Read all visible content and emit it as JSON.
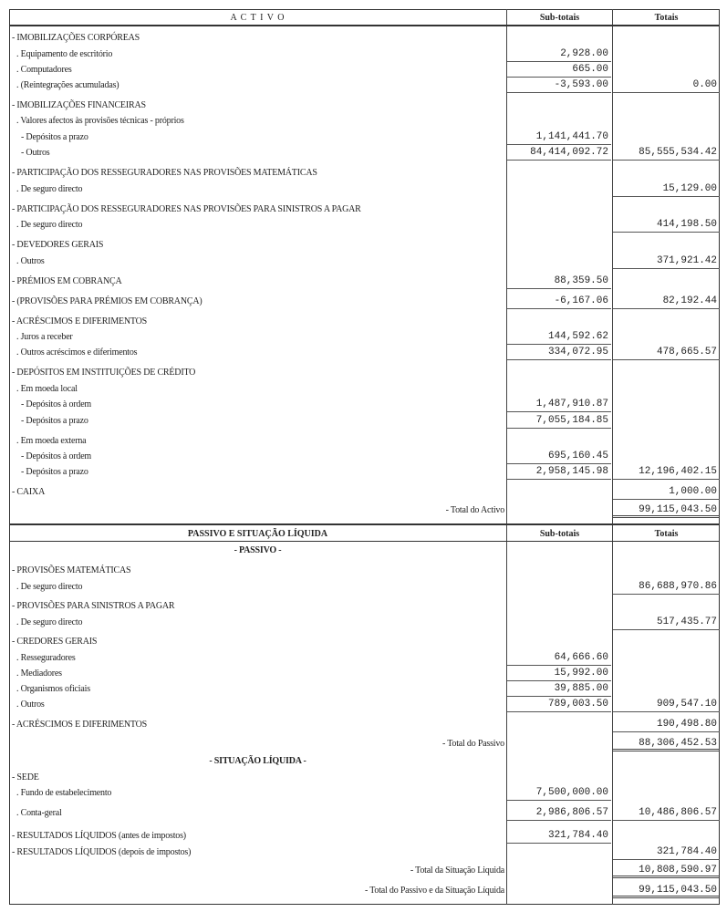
{
  "activo": {
    "header": {
      "title": "A C T I V O",
      "sub": "Sub-totais",
      "tot": "Totais"
    },
    "rows": [
      {
        "label": "- IMOBILIZAÇÕES CORPÓREAS"
      },
      {
        "label": ". Equipamento de escritório",
        "sub": "2,928.00",
        "i": 1
      },
      {
        "label": ". Computadores",
        "sub": "665.00",
        "i": 1
      },
      {
        "label": ".  (Reintegrações acumuladas)",
        "sub": "-3,593.00",
        "total": "0.00",
        "i": 1
      },
      {
        "label": "- IMOBILIZAÇÕES FINANCEIRAS"
      },
      {
        "label": ". Valores afectos às provisões técnicas - próprios",
        "i": 1
      },
      {
        "label": "- Depósitos a prazo",
        "sub": "1,141,441.70",
        "i": 2
      },
      {
        "label": "- Outros",
        "sub": "84,414,092.72",
        "total": "85,555,534.42",
        "i": 2
      },
      {
        "label": "- PARTICIPAÇÃO DOS RESSEGURADORES NAS PROVISÕES MATEMÁTICAS"
      },
      {
        "label": ". De seguro directo",
        "total": "15,129.00",
        "i": 1
      },
      {
        "label": "- PARTICIPAÇÃO DOS RESSEGURADORES NAS PROVISÕES PARA SINISTROS A PAGAR"
      },
      {
        "label": ". De seguro directo",
        "total": "414,198.50",
        "i": 1
      },
      {
        "label": "- DEVEDORES GERAIS"
      },
      {
        "label": ". Outros",
        "total": "371,921.42",
        "i": 1
      },
      {
        "label": "- PRÉMIOS EM COBRANÇA",
        "sub": "88,359.50"
      },
      {
        "label": "- (PROVISÕES PARA PRÉMIOS EM COBRANÇA)",
        "sub": "-6,167.06",
        "total": "82,192.44"
      },
      {
        "label": "- ACRÉSCIMOS  E  DIFERIMENTOS"
      },
      {
        "label": ". Juros a receber",
        "sub": "144,592.62",
        "i": 1
      },
      {
        "label": ". Outros acréscimos e diferimentos",
        "sub": "334,072.95",
        "total": "478,665.57",
        "i": 1
      },
      {
        "label": "- DEPÓSITOS EM INSTITUIÇÕES DE CRÉDITO"
      },
      {
        "label": ". Em moeda local",
        "i": 1
      },
      {
        "label": "- Depósitos à ordem",
        "sub": "1,487,910.87",
        "i": 2
      },
      {
        "label": "- Depósitos a prazo",
        "sub": "7,055,184.85",
        "i": 2
      },
      {
        "label": ". Em moeda externa",
        "i": 1
      },
      {
        "label": "- Depósitos à ordem",
        "sub": "695,160.45",
        "i": 2
      },
      {
        "label": "- Depósitos a prazo",
        "sub": "2,958,145.98",
        "total": "12,196,402.15",
        "i": 2
      },
      {
        "label": "- CAIXA",
        "total": "1,000.00"
      },
      {
        "label": "- Total do Activo",
        "total": "99,115,043.50",
        "kind": "right",
        "dbl": true
      }
    ]
  },
  "passivo": {
    "header": {
      "title": "PASSIVO E SITUAÇÃO  LÍQUIDA",
      "sub": "Sub-totais",
      "tot": "Totais"
    },
    "rows": [
      {
        "label": "- PASSIVO -",
        "kind": "center"
      },
      {
        "label": "- PROVISÕES MATEMÁTICAS"
      },
      {
        "label": ". De seguro directo",
        "total": "86,688,970.86",
        "i": 1
      },
      {
        "label": "- PROVISÕES PARA SINISTROS A PAGAR"
      },
      {
        "label": ". De seguro directo",
        "total": "517,435.77",
        "i": 1
      },
      {
        "label": "- CREDORES GERAIS"
      },
      {
        "label": ". Resseguradores",
        "sub": "64,666.60",
        "i": 1
      },
      {
        "label": ". Mediadores",
        "sub": "15,992.00",
        "i": 1
      },
      {
        "label": ". Organismos oficiais",
        "sub": "39,885.00",
        "i": 1
      },
      {
        "label": ". Outros",
        "sub": "789,003.50",
        "total": "909,547.10",
        "i": 1
      },
      {
        "label": "- ACRÉSCIMOS  E  DIFERIMENTOS",
        "total": "190,498.80"
      },
      {
        "label": "- Total do Passivo",
        "total": "88,306,452.53",
        "kind": "right",
        "dbl": true
      },
      {
        "label": "- SITUAÇÃO LÍQUIDA -",
        "kind": "center"
      },
      {
        "label": "- SEDE"
      },
      {
        "label": ". Fundo de estabelecimento",
        "sub": "7,500,000.00",
        "i": 1
      },
      {
        "label": ". Conta-geral",
        "sub": "2,986,806.57",
        "total": "10,486,806.57",
        "i": 1
      },
      {
        "label": "- RESULTADOS LÍQUIDOS (antes de impostos)",
        "sub": "321,784.40"
      },
      {
        "label": "- RESULTADOS LÍQUIDOS (depois de impostos)",
        "total": "321,784.40"
      },
      {
        "label": "- Total da Situação Liquida",
        "total": "10,808,590.97",
        "kind": "right",
        "dbl": true
      },
      {
        "label": "- Total do Passivo e da Situação Líquida",
        "total": "99,115,043.50",
        "kind": "right",
        "dbl": true
      }
    ]
  }
}
